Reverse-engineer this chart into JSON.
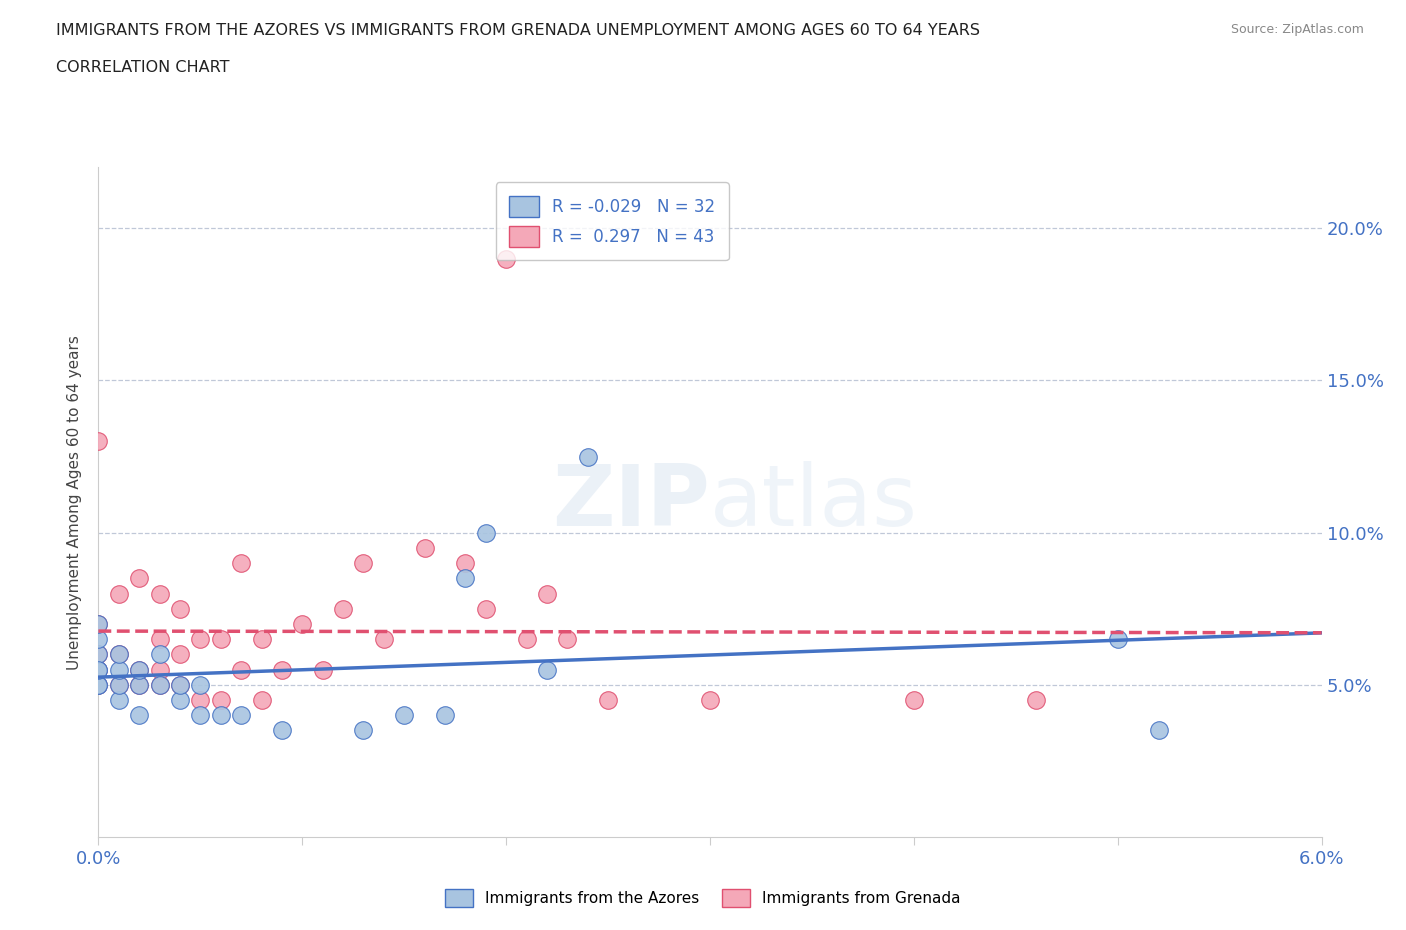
{
  "title_line1": "IMMIGRANTS FROM THE AZORES VS IMMIGRANTS FROM GRENADA UNEMPLOYMENT AMONG AGES 60 TO 64 YEARS",
  "title_line2": "CORRELATION CHART",
  "source_text": "Source: ZipAtlas.com",
  "ylabel": "Unemployment Among Ages 60 to 64 years",
  "xlim": [
    0.0,
    0.06
  ],
  "ylim": [
    0.0,
    0.22
  ],
  "xticks": [
    0.0,
    0.01,
    0.02,
    0.03,
    0.04,
    0.05,
    0.06
  ],
  "xticklabels": [
    "0.0%",
    "",
    "",
    "",
    "",
    "",
    "6.0%"
  ],
  "yticks": [
    0.05,
    0.1,
    0.15,
    0.2
  ],
  "yticklabels": [
    "5.0%",
    "10.0%",
    "15.0%",
    "20.0%"
  ],
  "r_azores": -0.029,
  "n_azores": 32,
  "r_grenada": 0.297,
  "n_grenada": 43,
  "color_azores": "#a8c4e0",
  "color_grenada": "#f4a8b8",
  "line_color_azores": "#4472c4",
  "line_color_grenada": "#e05070",
  "background_color": "#ffffff",
  "azores_x": [
    0.0,
    0.0,
    0.0,
    0.0,
    0.0,
    0.0,
    0.0,
    0.001,
    0.001,
    0.001,
    0.001,
    0.002,
    0.002,
    0.002,
    0.003,
    0.003,
    0.004,
    0.004,
    0.005,
    0.005,
    0.006,
    0.007,
    0.009,
    0.013,
    0.015,
    0.017,
    0.018,
    0.019,
    0.022,
    0.024,
    0.05,
    0.052
  ],
  "azores_y": [
    0.05,
    0.055,
    0.06,
    0.065,
    0.07,
    0.05,
    0.055,
    0.045,
    0.05,
    0.055,
    0.06,
    0.04,
    0.05,
    0.055,
    0.05,
    0.06,
    0.045,
    0.05,
    0.04,
    0.05,
    0.04,
    0.04,
    0.035,
    0.035,
    0.04,
    0.04,
    0.085,
    0.1,
    0.055,
    0.125,
    0.065,
    0.035
  ],
  "grenada_x": [
    0.0,
    0.0,
    0.0,
    0.0,
    0.0,
    0.001,
    0.001,
    0.001,
    0.002,
    0.002,
    0.002,
    0.003,
    0.003,
    0.003,
    0.003,
    0.004,
    0.004,
    0.004,
    0.005,
    0.005,
    0.006,
    0.006,
    0.007,
    0.007,
    0.008,
    0.008,
    0.009,
    0.01,
    0.011,
    0.012,
    0.013,
    0.014,
    0.016,
    0.018,
    0.019,
    0.02,
    0.021,
    0.022,
    0.023,
    0.025,
    0.03,
    0.04,
    0.046
  ],
  "grenada_y": [
    0.05,
    0.07,
    0.13,
    0.055,
    0.06,
    0.05,
    0.06,
    0.08,
    0.05,
    0.055,
    0.085,
    0.05,
    0.055,
    0.065,
    0.08,
    0.05,
    0.06,
    0.075,
    0.045,
    0.065,
    0.045,
    0.065,
    0.055,
    0.09,
    0.045,
    0.065,
    0.055,
    0.07,
    0.055,
    0.075,
    0.09,
    0.065,
    0.095,
    0.09,
    0.075,
    0.19,
    0.065,
    0.08,
    0.065,
    0.045,
    0.045,
    0.045,
    0.045
  ]
}
